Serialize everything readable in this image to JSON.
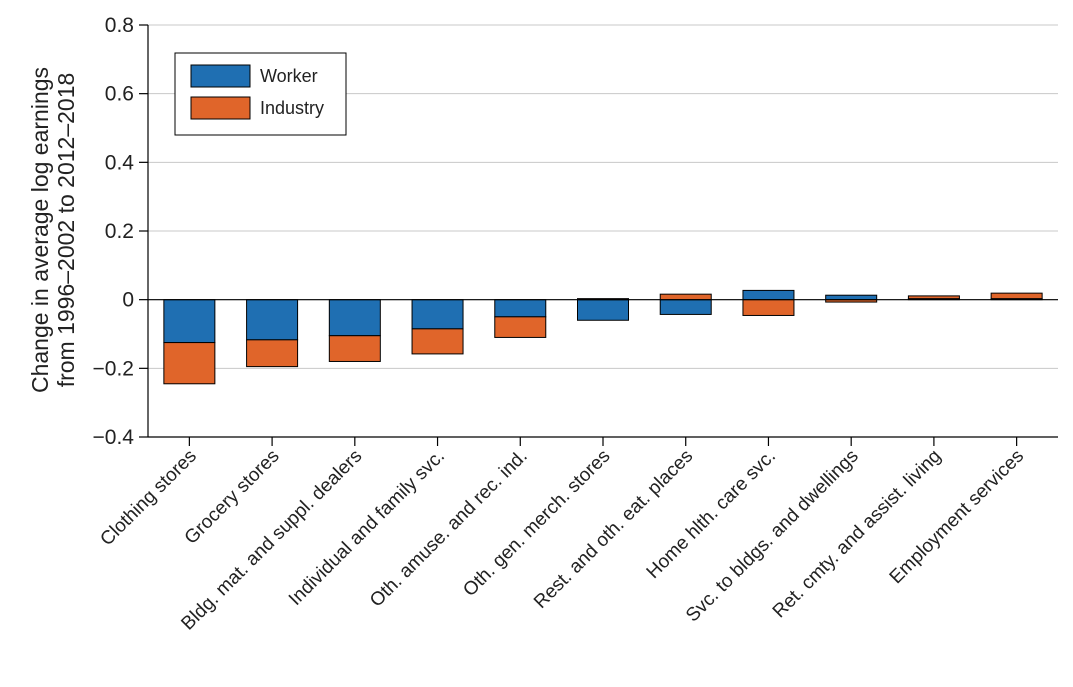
{
  "chart_data": {
    "type": "bar",
    "stacked": true,
    "ylabel": [
      "Change in average log earnings",
      "from 1996–2002 to 2012–2018"
    ],
    "xlabel": "",
    "ylim": [
      -0.4,
      0.8
    ],
    "yticks": [
      {
        "value": 0.8,
        "label": "0.8"
      },
      {
        "value": 0.6,
        "label": "0.6"
      },
      {
        "value": 0.4,
        "label": "0.4"
      },
      {
        "value": 0.2,
        "label": "0.2"
      },
      {
        "value": 0,
        "label": "0"
      },
      {
        "value": -0.2,
        "label": "−0.2"
      },
      {
        "value": -0.4,
        "label": "−0.4"
      }
    ],
    "grid": true,
    "legend_position": "top-left",
    "categories": [
      "Clothing stores",
      "Grocery stores",
      "Bldg. mat. and suppl. dealers",
      "Individual and family svc.",
      "Oth. amuse. and rec. ind.",
      "Oth. gen. merch. stores",
      "Rest. and oth. eat. places",
      "Home hlth. care svc.",
      "Svc. to bldgs. and dwellings",
      "Ret. cmty. and assist. living",
      "Employment services"
    ],
    "series": [
      {
        "name": "Worker",
        "color": "#1f6fb2",
        "values": [
          -0.125,
          -0.117,
          -0.105,
          -0.085,
          -0.05,
          -0.06,
          -0.043,
          0.027,
          0.013,
          0.003,
          0.003
        ]
      },
      {
        "name": "Industry",
        "color": "#e0652a",
        "values": [
          -0.12,
          -0.078,
          -0.075,
          -0.073,
          -0.06,
          0.003,
          0.016,
          -0.046,
          -0.007,
          0.008,
          0.016
        ]
      }
    ]
  }
}
